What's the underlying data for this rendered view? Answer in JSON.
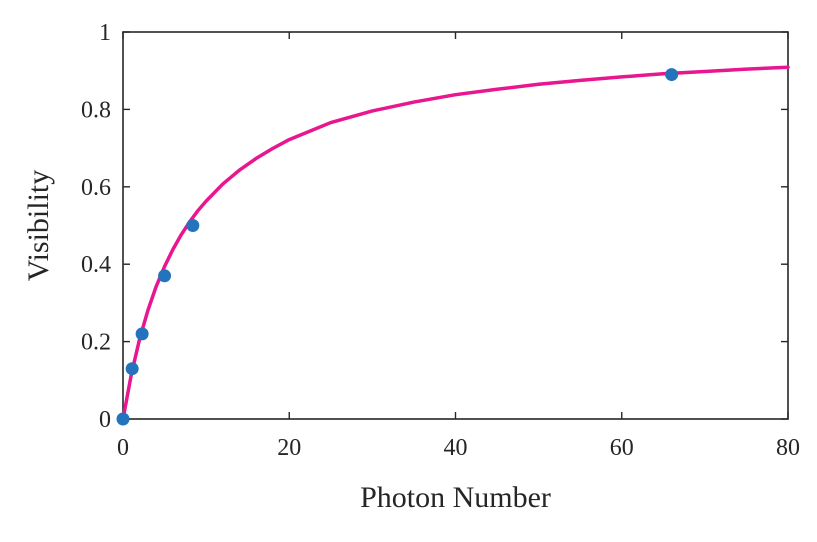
{
  "chart_data": {
    "type": "scatter",
    "xlabel": "Photon Number",
    "ylabel": "Visibility",
    "xlim": [
      0,
      80
    ],
    "ylim": [
      0,
      1
    ],
    "xticks": [
      0,
      20,
      40,
      60,
      80
    ],
    "xtick_labels": [
      "0",
      "20",
      "40",
      "60",
      "80"
    ],
    "yticks": [
      0,
      0.2,
      0.4,
      0.6,
      0.8,
      1
    ],
    "ytick_labels": [
      "0",
      "0.2",
      "0.4",
      "0.6",
      "0.8",
      "1"
    ],
    "grid": false,
    "series": [
      {
        "kind": "points",
        "color": "#2374bd",
        "x": [
          0,
          1.1,
          2.3,
          5.0,
          8.4,
          66.0
        ],
        "y": [
          0.0,
          0.13,
          0.22,
          0.37,
          0.5,
          0.89
        ]
      },
      {
        "kind": "line",
        "color": "#e8168f",
        "x": [
          0,
          1,
          2,
          3,
          4,
          5,
          6,
          7,
          8,
          9,
          10,
          12,
          14,
          16,
          18,
          20,
          25,
          30,
          35,
          40,
          45,
          50,
          55,
          60,
          65,
          70,
          75,
          80
        ],
        "y": [
          0.0,
          0.115,
          0.207,
          0.281,
          0.343,
          0.394,
          0.438,
          0.476,
          0.509,
          0.538,
          0.563,
          0.607,
          0.643,
          0.673,
          0.699,
          0.722,
          0.766,
          0.796,
          0.819,
          0.838,
          0.852,
          0.865,
          0.875,
          0.884,
          0.892,
          0.898,
          0.904,
          0.909
        ]
      }
    ]
  }
}
